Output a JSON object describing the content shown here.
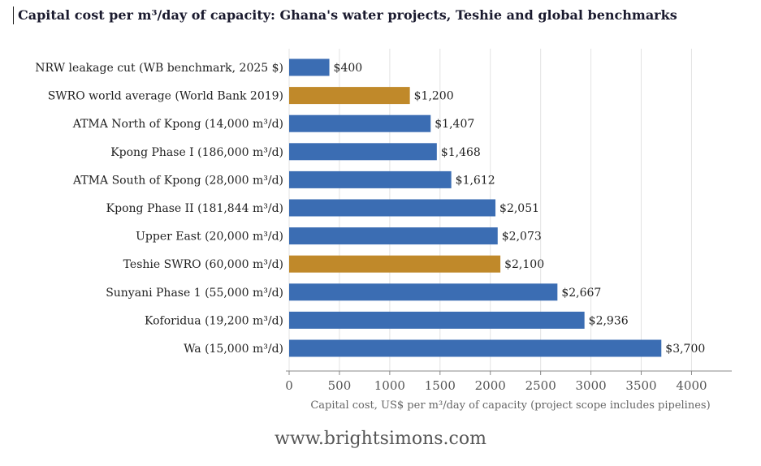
{
  "title": "Capital cost per m³/day of capacity: Ghana's water projects, Teshie and global benchmarks",
  "footer": "www.brightsimons.com",
  "colors": {
    "default_bar": "#3b6db3",
    "highlight_bar": "#c0892a"
  },
  "chart_data": {
    "type": "bar",
    "orientation": "horizontal",
    "categories": [
      "NRW leakage cut (WB benchmark, 2025 $)",
      "SWRO world average (World Bank 2019)",
      "ATMA North of Kpong (14,000 m³/d)",
      "Kpong Phase I (186,000 m³/d)",
      "ATMA South of Kpong (28,000 m³/d)",
      "Kpong Phase II (181,844 m³/d)",
      "Upper East (20,000 m³/d)",
      "Teshie SWRO (60,000 m³/d)",
      "Sunyani Phase 1 (55,000 m³/d)",
      "Koforidua (19,200 m³/d)",
      "Wa (15,000 m³/d)"
    ],
    "values": [
      400,
      1200,
      1407,
      1468,
      1612,
      2051,
      2073,
      2100,
      2667,
      2936,
      3700
    ],
    "data_labels": [
      "$400",
      "$1,200",
      "$1,407",
      "$1,468",
      "$1,612",
      "$2,051",
      "$2,073",
      "$2,100",
      "$2,667",
      "$2,936",
      "$3,700"
    ],
    "highlighted": [
      false,
      true,
      false,
      false,
      false,
      false,
      false,
      true,
      false,
      false,
      false
    ],
    "xlabel": "Capital cost, US$ per m³/day of capacity (project scope includes pipelines)",
    "xlim": [
      0,
      4400
    ],
    "xticks": [
      0,
      500,
      1000,
      1500,
      2000,
      2500,
      3000,
      3500,
      4000
    ],
    "grid": "vertical"
  }
}
